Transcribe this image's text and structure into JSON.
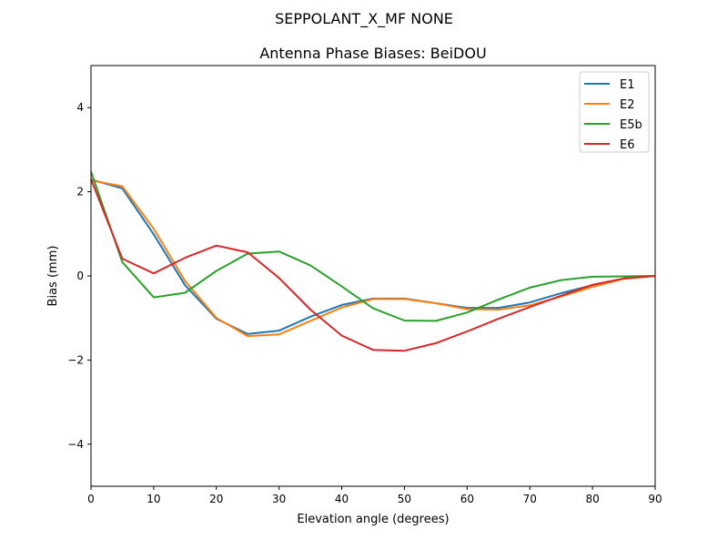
{
  "chart_data": {
    "type": "line",
    "suptitle": "SEPPOLANT_X_MF  NONE",
    "title": "Antenna Phase Biases: BeiDOU",
    "xlabel": "Elevation angle (degrees)",
    "ylabel": "Bias (mm)",
    "xlim": [
      0,
      90
    ],
    "ylim": [
      -5,
      5
    ],
    "xticks": [
      0,
      10,
      20,
      30,
      40,
      50,
      60,
      70,
      80,
      90
    ],
    "yticks": [
      -4,
      -2,
      0,
      2,
      4
    ],
    "ytick_labels": [
      "−4",
      "−2",
      "0",
      "2",
      "4"
    ],
    "grid": false,
    "legend_position": "top-right",
    "x": [
      0,
      5,
      10,
      15,
      20,
      25,
      30,
      35,
      40,
      45,
      50,
      55,
      60,
      65,
      70,
      75,
      80,
      85,
      90
    ],
    "series": [
      {
        "name": "E1",
        "color": "#1f77b4",
        "values": [
          2.29,
          2.08,
          0.99,
          -0.22,
          -1.02,
          -1.38,
          -1.3,
          -0.97,
          -0.69,
          -0.54,
          -0.54,
          -0.65,
          -0.76,
          -0.76,
          -0.63,
          -0.41,
          -0.22,
          -0.06,
          0
        ]
      },
      {
        "name": "E2",
        "color": "#ff7f0e",
        "values": [
          2.27,
          2.13,
          1.12,
          -0.12,
          -1.0,
          -1.43,
          -1.39,
          -1.07,
          -0.75,
          -0.55,
          -0.55,
          -0.65,
          -0.79,
          -0.8,
          -0.7,
          -0.49,
          -0.26,
          -0.07,
          0
        ]
      },
      {
        "name": "E5b",
        "color": "#2ca02c",
        "values": [
          2.48,
          0.33,
          -0.51,
          -0.4,
          0.12,
          0.53,
          0.58,
          0.25,
          -0.25,
          -0.77,
          -1.06,
          -1.07,
          -0.87,
          -0.56,
          -0.28,
          -0.1,
          -0.02,
          -0.01,
          0
        ]
      },
      {
        "name": "E6",
        "color": "#d62728",
        "values": [
          2.3,
          0.41,
          0.06,
          0.43,
          0.72,
          0.56,
          -0.05,
          -0.8,
          -1.42,
          -1.76,
          -1.78,
          -1.6,
          -1.32,
          -1.02,
          -0.74,
          -0.47,
          -0.21,
          -0.06,
          0
        ]
      }
    ]
  }
}
